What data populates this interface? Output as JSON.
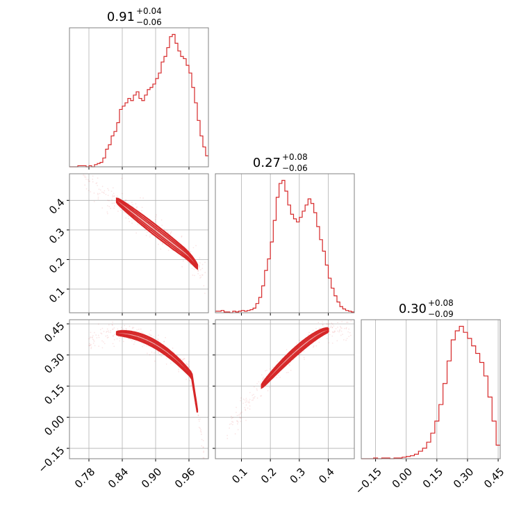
{
  "chart_data": [
    {
      "type": "histogram",
      "panel": "hist-p0",
      "title": {
        "value": "0.91",
        "upper": "+0.04",
        "lower": "−0.06"
      },
      "xlim": [
        0.745,
        0.995
      ],
      "color": "#d62728",
      "bins_x": [
        0.745,
        0.75,
        0.755,
        0.76,
        0.765,
        0.77,
        0.775,
        0.78,
        0.785,
        0.79,
        0.795,
        0.8,
        0.805,
        0.81,
        0.815,
        0.82,
        0.825,
        0.83,
        0.835,
        0.84,
        0.845,
        0.85,
        0.855,
        0.86,
        0.865,
        0.87,
        0.875,
        0.88,
        0.885,
        0.89,
        0.895,
        0.9,
        0.905,
        0.91,
        0.915,
        0.92,
        0.925,
        0.93,
        0.935,
        0.94,
        0.945,
        0.95,
        0.955,
        0.96,
        0.965,
        0.97,
        0.975,
        0.98,
        0.985,
        0.99,
        0.995
      ],
      "counts": [
        0,
        0,
        0,
        1,
        1,
        1,
        0,
        1,
        0,
        2,
        3,
        4,
        8,
        16,
        20,
        28,
        32,
        40,
        52,
        55,
        58,
        62,
        60,
        65,
        68,
        62,
        60,
        65,
        70,
        72,
        75,
        80,
        85,
        95,
        100,
        108,
        118,
        120,
        112,
        105,
        100,
        98,
        92,
        85,
        72,
        58,
        42,
        28,
        18,
        10
      ]
    },
    {
      "type": "histogram",
      "panel": "hist-p1",
      "title": {
        "value": "0.27",
        "upper": "+0.08",
        "lower": "−0.06"
      },
      "xlim": [
        0.01,
        0.49
      ],
      "color": "#d62728",
      "bins_x": [
        0.01,
        0.02,
        0.03,
        0.04,
        0.05,
        0.06,
        0.07,
        0.08,
        0.09,
        0.1,
        0.11,
        0.12,
        0.13,
        0.14,
        0.15,
        0.16,
        0.17,
        0.18,
        0.19,
        0.2,
        0.21,
        0.22,
        0.23,
        0.24,
        0.25,
        0.26,
        0.27,
        0.28,
        0.29,
        0.3,
        0.31,
        0.32,
        0.33,
        0.34,
        0.35,
        0.36,
        0.37,
        0.38,
        0.39,
        0.4,
        0.41,
        0.42,
        0.43,
        0.44,
        0.45,
        0.46,
        0.47,
        0.48,
        0.49
      ],
      "counts": [
        2,
        2,
        3,
        1,
        1,
        0,
        2,
        1,
        2,
        3,
        2,
        3,
        4,
        6,
        12,
        20,
        35,
        55,
        70,
        92,
        120,
        150,
        168,
        172,
        158,
        140,
        128,
        122,
        118,
        124,
        132,
        140,
        148,
        142,
        130,
        112,
        95,
        80,
        62,
        45,
        32,
        22,
        14,
        8,
        5,
        3,
        2,
        1
      ]
    },
    {
      "type": "histogram",
      "panel": "hist-p2",
      "title": {
        "value": "0.30",
        "upper": "+0.08",
        "lower": "−0.09"
      },
      "xlim": [
        -0.22,
        0.46
      ],
      "color": "#d62728",
      "bins_x": [
        -0.22,
        -0.2,
        -0.18,
        -0.16,
        -0.14,
        -0.12,
        -0.1,
        -0.08,
        -0.06,
        -0.04,
        -0.02,
        0.0,
        0.02,
        0.04,
        0.06,
        0.08,
        0.1,
        0.12,
        0.14,
        0.16,
        0.18,
        0.2,
        0.22,
        0.24,
        0.26,
        0.28,
        0.3,
        0.32,
        0.34,
        0.36,
        0.38,
        0.4,
        0.42,
        0.44,
        0.46
      ],
      "counts": [
        0,
        0,
        0,
        1,
        0,
        1,
        1,
        0,
        1,
        1,
        2,
        3,
        4,
        6,
        10,
        14,
        22,
        34,
        50,
        72,
        100,
        130,
        158,
        170,
        176,
        168,
        160,
        150,
        140,
        128,
        110,
        82,
        50,
        18
      ]
    },
    {
      "type": "scatter",
      "panel": "scatter-p0-p1",
      "xlim": [
        0.745,
        0.995
      ],
      "ylim": [
        0.02,
        0.49
      ],
      "relation": "y decreases as x increases (strong negative correlation)",
      "color": "#d62728"
    },
    {
      "type": "scatter",
      "panel": "scatter-p0-p2",
      "xlim": [
        0.745,
        0.995
      ],
      "ylim": [
        -0.2,
        0.47
      ],
      "relation": "y decreases as x increases, curving down sharply near x = 0.98",
      "color": "#d62728"
    },
    {
      "type": "scatter",
      "panel": "scatter-p1-p2",
      "xlim": [
        0.01,
        0.49
      ],
      "ylim": [
        -0.2,
        0.47
      ],
      "relation": "y increases with x, saturating near y = 0.42 (strong positive correlation)",
      "color": "#d62728"
    }
  ],
  "axes": {
    "p0_ticks": [
      "0.78",
      "0.84",
      "0.90",
      "0.96"
    ],
    "p0_tick_values": [
      0.78,
      0.84,
      0.9,
      0.96
    ],
    "p1_ticks": [
      "0.1",
      "0.2",
      "0.3",
      "0.4"
    ],
    "p1_tick_values": [
      0.1,
      0.2,
      0.3,
      0.4
    ],
    "p2_ticks": [
      "−0.15",
      "0.00",
      "0.15",
      "0.30",
      "0.45"
    ],
    "p2_tick_values": [
      -0.15,
      0.0,
      0.15,
      0.3,
      0.45
    ]
  }
}
